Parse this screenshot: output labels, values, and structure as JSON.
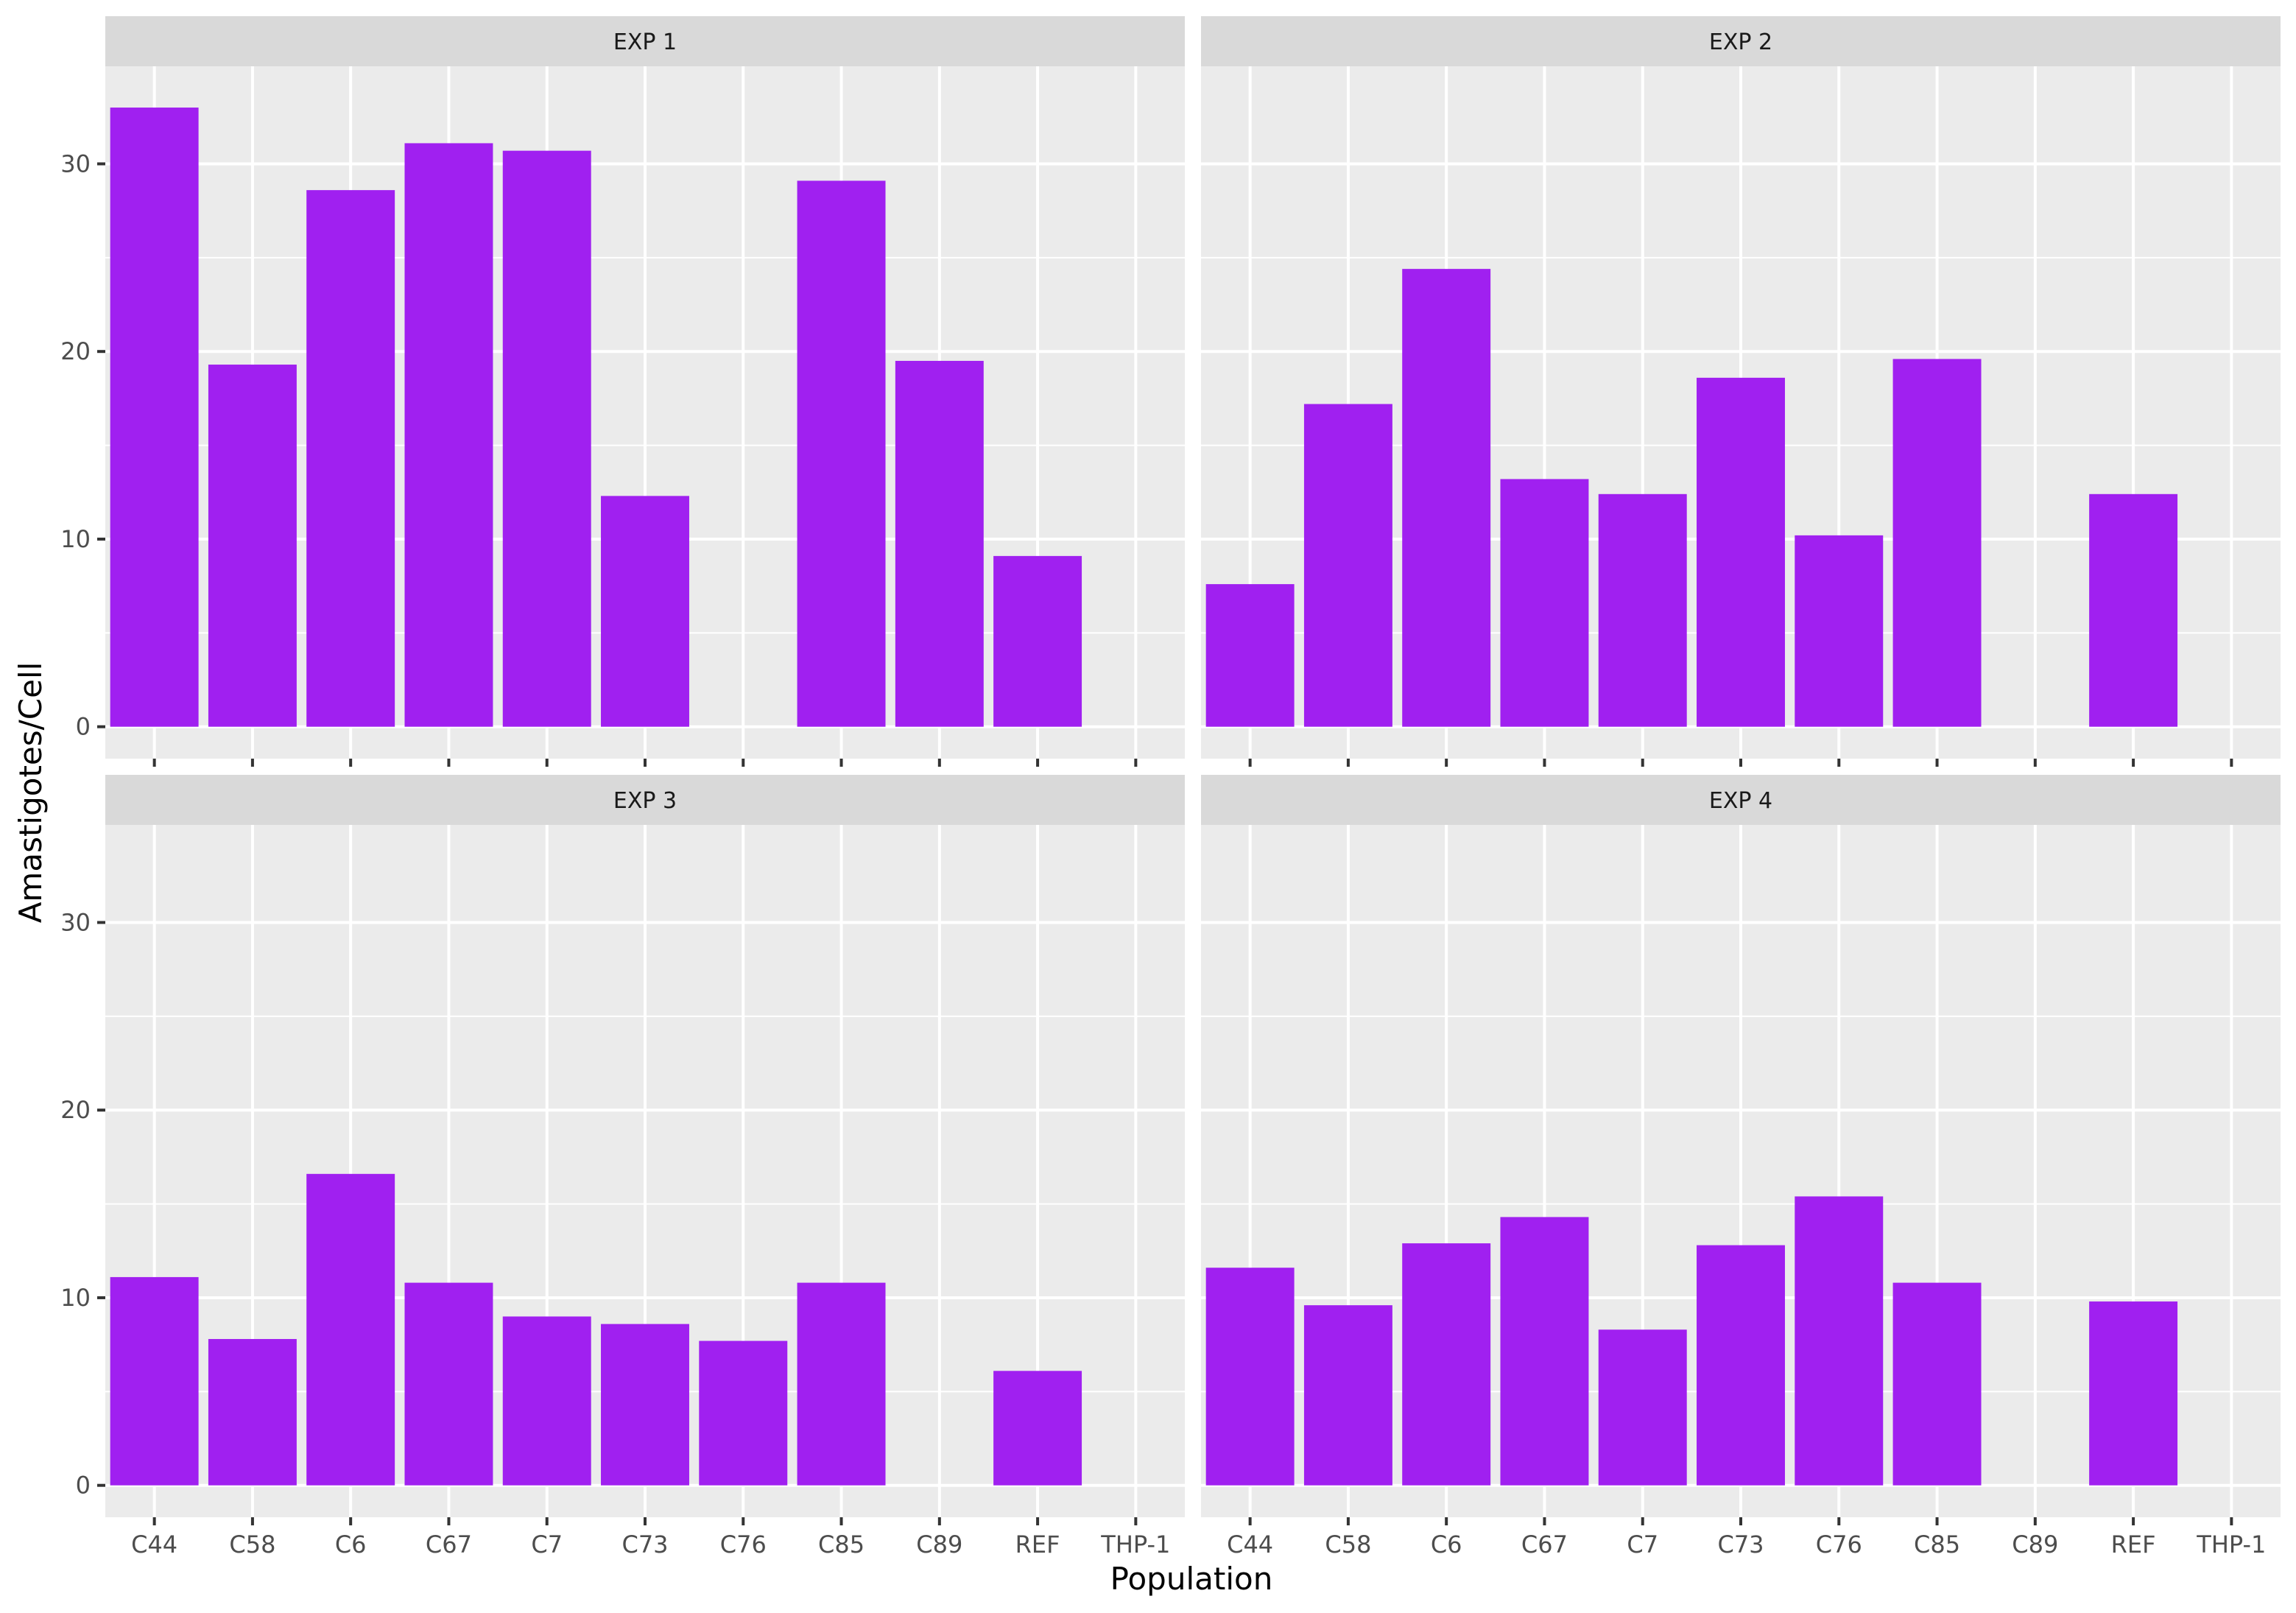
{
  "chart_data": {
    "type": "bar",
    "facet_layout": "2x2",
    "xlabel": "Population",
    "ylabel": "Amastigotes/Cell",
    "ylim": [
      -1.7,
      35.2
    ],
    "y_ticks": [
      0,
      10,
      20,
      30
    ],
    "grid": true,
    "bar_color": "#A020F0",
    "categories": [
      "C44",
      "C58",
      "C6",
      "C67",
      "C7",
      "C73",
      "C76",
      "C85",
      "C89",
      "REF",
      "THP-1"
    ],
    "panels": [
      {
        "title": "EXP 1",
        "values": [
          33.0,
          19.3,
          28.6,
          31.1,
          30.7,
          12.3,
          null,
          29.1,
          19.5,
          9.1,
          null
        ]
      },
      {
        "title": "EXP 2",
        "values": [
          7.6,
          17.2,
          24.4,
          13.2,
          12.4,
          18.6,
          10.2,
          19.6,
          null,
          12.4,
          null
        ]
      },
      {
        "title": "EXP 3",
        "values": [
          11.1,
          7.8,
          16.6,
          10.8,
          9.0,
          8.6,
          7.7,
          10.8,
          null,
          6.1,
          null
        ]
      },
      {
        "title": "EXP 4",
        "values": [
          11.6,
          9.6,
          12.9,
          14.3,
          8.3,
          12.8,
          15.4,
          10.8,
          null,
          9.8,
          null
        ]
      }
    ]
  }
}
